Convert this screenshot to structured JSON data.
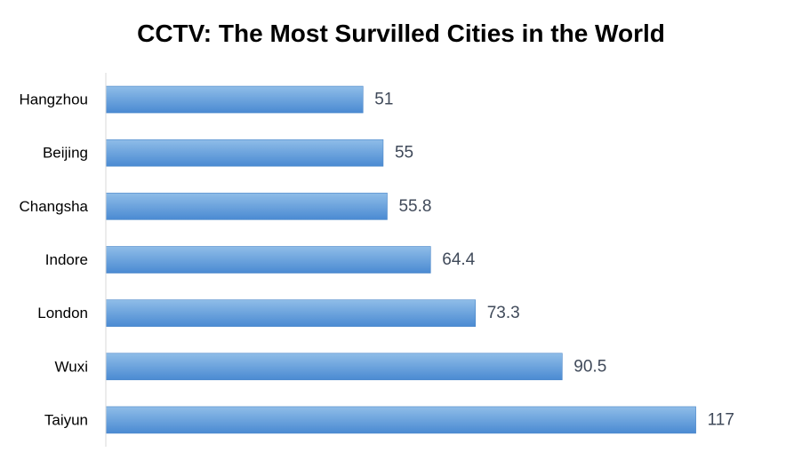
{
  "chart_data": {
    "type": "bar",
    "orientation": "horizontal",
    "title": "CCTV: The Most Survilled Cities in the World",
    "categories": [
      "Hangzhou",
      "Beijing",
      "Changsha",
      "Indore",
      "London",
      "Wuxi",
      "Taiyun"
    ],
    "values": [
      51,
      55,
      55.8,
      64.4,
      73.3,
      90.5,
      117
    ],
    "value_labels": [
      "51",
      "55",
      "55.8",
      "64.4",
      "73.3",
      "90.5",
      "117"
    ],
    "xlim": [
      0,
      128
    ],
    "grid": false,
    "legend": "none",
    "colors": {
      "bar_top": "#8fbde8",
      "bar_bottom": "#4a8ad2",
      "bar_edge": "#4a86c8",
      "axis": "#d9d9d9"
    }
  }
}
